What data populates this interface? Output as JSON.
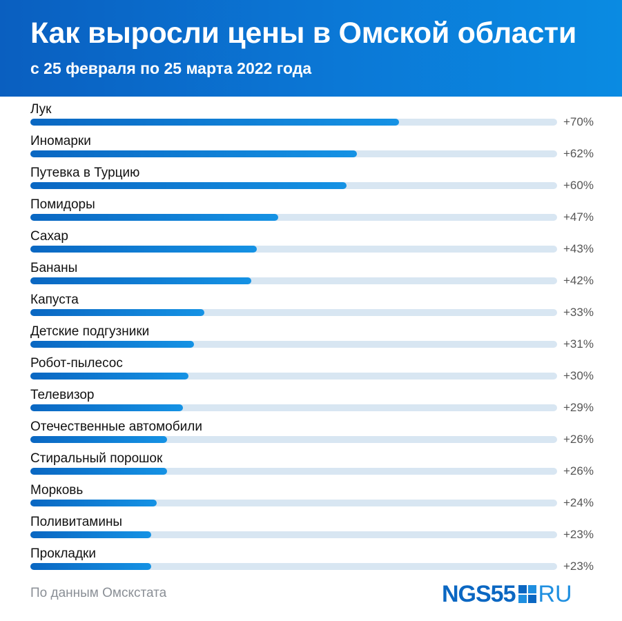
{
  "header": {
    "title": "Как выросли цены в Омской области",
    "subtitle": "с 25 февраля по 25 марта 2022 года"
  },
  "footer": {
    "source": "По данным Омскстата",
    "logo_main": "NGS55",
    "logo_suffix": "RU"
  },
  "colors": {
    "header_bg": "#0b78d6",
    "bar_fill_start": "#0a67c2",
    "bar_fill_end": "#1592e4",
    "bar_track": "#d8e6f2",
    "logo_blue": "#0b67c2",
    "logo_light": "#1f8fe0"
  },
  "chart_data": {
    "type": "bar",
    "orientation": "horizontal",
    "title": "Как выросли цены в Омской области",
    "subtitle": "с 25 февраля по 25 марта 2022 года",
    "xlim": [
      0,
      100
    ],
    "grid": false,
    "categories": [
      "Лук",
      "Иномарки",
      "Путевка в Турцию",
      "Помидоры",
      "Сахар",
      "Бананы",
      "Капуста",
      "Детские подгузники",
      "Робот-пылесос",
      "Телевизор",
      "Отечественные автомобили",
      "Стиральный порошок",
      "Морковь",
      "Поливитамины",
      "Прокладки"
    ],
    "values": [
      70,
      62,
      60,
      47,
      43,
      42,
      33,
      31,
      30,
      29,
      26,
      26,
      24,
      23,
      23
    ],
    "value_labels": [
      "+70%",
      "+62%",
      "+60%",
      "+47%",
      "+43%",
      "+42%",
      "+33%",
      "+31%",
      "+30%",
      "+29%",
      "+26%",
      "+26%",
      "+24%",
      "+23%",
      "+23%"
    ]
  }
}
